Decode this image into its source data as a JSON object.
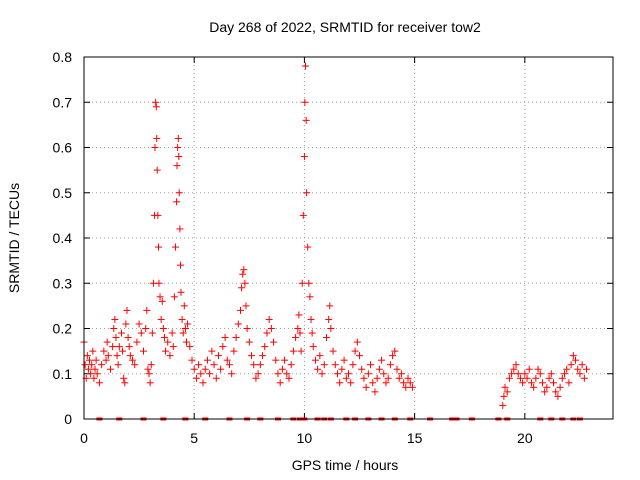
{
  "chart_data": {
    "type": "scatter",
    "title": "Day 268 of 2022, SRMTID for receiver tow2",
    "xlabel": "GPS time / hours",
    "ylabel": "SRMTID / TECUs",
    "xlim": [
      0,
      24
    ],
    "ylim": [
      0,
      0.8
    ],
    "x_ticks": [
      0,
      5,
      10,
      15,
      20
    ],
    "x_tick_labels": [
      "0",
      "5",
      "10",
      "15",
      "20"
    ],
    "y_ticks": [
      0,
      0.1,
      0.2,
      0.3,
      0.4,
      0.5,
      0.6,
      0.7,
      0.8
    ],
    "y_tick_labels": [
      "0",
      "0.1",
      "0.2",
      "0.3",
      "0.4",
      "0.5",
      "0.6",
      "0.7",
      "0.8"
    ],
    "grid": true,
    "marker": "+",
    "color": "#ff0000",
    "series": [
      {
        "name": "SRMTID",
        "points": [
          [
            0.0,
            0.17
          ],
          [
            0.05,
            0.12
          ],
          [
            0.1,
            0.09
          ],
          [
            0.15,
            0.14
          ],
          [
            0.2,
            0.11
          ],
          [
            0.25,
            0.13
          ],
          [
            0.3,
            0.1
          ],
          [
            0.35,
            0.12
          ],
          [
            0.4,
            0.15
          ],
          [
            0.45,
            0.09
          ],
          [
            0.5,
            0.11
          ],
          [
            0.55,
            0.13
          ],
          [
            0.6,
            0.1
          ],
          [
            0.7,
            0.08
          ],
          [
            0.8,
            0.12
          ],
          [
            0.9,
            0.15
          ],
          [
            1.0,
            0.13
          ],
          [
            1.05,
            0.17
          ],
          [
            1.1,
            0.14
          ],
          [
            1.2,
            0.11
          ],
          [
            1.3,
            0.16
          ],
          [
            1.35,
            0.2
          ],
          [
            1.4,
            0.22
          ],
          [
            1.45,
            0.18
          ],
          [
            1.5,
            0.14
          ],
          [
            1.55,
            0.12
          ],
          [
            1.6,
            0.16
          ],
          [
            1.7,
            0.19
          ],
          [
            1.75,
            0.15
          ],
          [
            1.8,
            0.09
          ],
          [
            1.85,
            0.08
          ],
          [
            1.9,
            0.21
          ],
          [
            1.95,
            0.24
          ],
          [
            2.0,
            0.18
          ],
          [
            2.05,
            0.16
          ],
          [
            2.1,
            0.14
          ],
          [
            2.2,
            0.13
          ],
          [
            2.3,
            0.12
          ],
          [
            2.4,
            0.17
          ],
          [
            2.5,
            0.21
          ],
          [
            2.6,
            0.19
          ],
          [
            2.7,
            0.15
          ],
          [
            2.8,
            0.2
          ],
          [
            2.85,
            0.24
          ],
          [
            2.9,
            0.11
          ],
          [
            2.95,
            0.1
          ],
          [
            3.0,
            0.08
          ],
          [
            3.05,
            0.12
          ],
          [
            3.1,
            0.19
          ],
          [
            3.15,
            0.3
          ],
          [
            3.2,
            0.45
          ],
          [
            3.22,
            0.6
          ],
          [
            3.25,
            0.7
          ],
          [
            3.28,
            0.69
          ],
          [
            3.3,
            0.62
          ],
          [
            3.32,
            0.55
          ],
          [
            3.35,
            0.45
          ],
          [
            3.38,
            0.38
          ],
          [
            3.4,
            0.3
          ],
          [
            3.45,
            0.27
          ],
          [
            3.5,
            0.22
          ],
          [
            3.55,
            0.26
          ],
          [
            3.6,
            0.2
          ],
          [
            3.65,
            0.18
          ],
          [
            3.7,
            0.15
          ],
          [
            3.8,
            0.17
          ],
          [
            3.9,
            0.14
          ],
          [
            4.0,
            0.19
          ],
          [
            4.05,
            0.16
          ],
          [
            4.1,
            0.27
          ],
          [
            4.15,
            0.38
          ],
          [
            4.2,
            0.48
          ],
          [
            4.22,
            0.56
          ],
          [
            4.25,
            0.6
          ],
          [
            4.28,
            0.62
          ],
          [
            4.3,
            0.58
          ],
          [
            4.32,
            0.5
          ],
          [
            4.35,
            0.42
          ],
          [
            4.38,
            0.34
          ],
          [
            4.4,
            0.28
          ],
          [
            4.45,
            0.22
          ],
          [
            4.5,
            0.19
          ],
          [
            4.55,
            0.25
          ],
          [
            4.6,
            0.2
          ],
          [
            4.65,
            0.17
          ],
          [
            4.7,
            0.21
          ],
          [
            4.8,
            0.16
          ],
          [
            4.9,
            0.13
          ],
          [
            5.0,
            0.11
          ],
          [
            5.1,
            0.09
          ],
          [
            5.2,
            0.12
          ],
          [
            5.3,
            0.1
          ],
          [
            5.4,
            0.08
          ],
          [
            5.5,
            0.11
          ],
          [
            5.6,
            0.13
          ],
          [
            5.7,
            0.1
          ],
          [
            5.8,
            0.15
          ],
          [
            5.9,
            0.12
          ],
          [
            6.0,
            0.09
          ],
          [
            6.1,
            0.14
          ],
          [
            6.2,
            0.11
          ],
          [
            6.3,
            0.16
          ],
          [
            6.4,
            0.18
          ],
          [
            6.5,
            0.13
          ],
          [
            6.6,
            0.12
          ],
          [
            6.7,
            0.1
          ],
          [
            6.8,
            0.15
          ],
          [
            6.9,
            0.18
          ],
          [
            7.0,
            0.21
          ],
          [
            7.1,
            0.24
          ],
          [
            7.15,
            0.29
          ],
          [
            7.2,
            0.32
          ],
          [
            7.25,
            0.33
          ],
          [
            7.3,
            0.3
          ],
          [
            7.35,
            0.25
          ],
          [
            7.4,
            0.2
          ],
          [
            7.5,
            0.17
          ],
          [
            7.6,
            0.14
          ],
          [
            7.7,
            0.12
          ],
          [
            7.8,
            0.09
          ],
          [
            7.9,
            0.1
          ],
          [
            8.0,
            0.12
          ],
          [
            8.1,
            0.14
          ],
          [
            8.2,
            0.16
          ],
          [
            8.3,
            0.19
          ],
          [
            8.4,
            0.22
          ],
          [
            8.5,
            0.2
          ],
          [
            8.6,
            0.17
          ],
          [
            8.7,
            0.13
          ],
          [
            8.8,
            0.1
          ],
          [
            8.9,
            0.08
          ],
          [
            9.0,
            0.11
          ],
          [
            9.1,
            0.13
          ],
          [
            9.2,
            0.1
          ],
          [
            9.3,
            0.09
          ],
          [
            9.4,
            0.12
          ],
          [
            9.5,
            0.15
          ],
          [
            9.6,
            0.18
          ],
          [
            9.7,
            0.2
          ],
          [
            9.75,
            0.23
          ],
          [
            9.8,
            0.19
          ],
          [
            9.85,
            0.15
          ],
          [
            9.9,
            0.3
          ],
          [
            9.95,
            0.45
          ],
          [
            10.0,
            0.58
          ],
          [
            10.02,
            0.7
          ],
          [
            10.05,
            0.78
          ],
          [
            10.08,
            0.66
          ],
          [
            10.1,
            0.5
          ],
          [
            10.15,
            0.38
          ],
          [
            10.2,
            0.3
          ],
          [
            10.25,
            0.27
          ],
          [
            10.3,
            0.22
          ],
          [
            10.35,
            0.19
          ],
          [
            10.4,
            0.16
          ],
          [
            10.5,
            0.13
          ],
          [
            10.6,
            0.11
          ],
          [
            10.7,
            0.14
          ],
          [
            10.8,
            0.1
          ],
          [
            10.9,
            0.12
          ],
          [
            11.0,
            0.18
          ],
          [
            11.1,
            0.22
          ],
          [
            11.15,
            0.25
          ],
          [
            11.2,
            0.2
          ],
          [
            11.3,
            0.15
          ],
          [
            11.4,
            0.12
          ],
          [
            11.5,
            0.1
          ],
          [
            11.6,
            0.08
          ],
          [
            11.7,
            0.11
          ],
          [
            11.8,
            0.13
          ],
          [
            11.9,
            0.09
          ],
          [
            12.0,
            0.1
          ],
          [
            12.1,
            0.08
          ],
          [
            12.2,
            0.12
          ],
          [
            12.3,
            0.15
          ],
          [
            12.4,
            0.17
          ],
          [
            12.5,
            0.14
          ],
          [
            12.6,
            0.11
          ],
          [
            12.7,
            0.09
          ],
          [
            12.8,
            0.07
          ],
          [
            12.9,
            0.1
          ],
          [
            13.0,
            0.12
          ],
          [
            13.1,
            0.08
          ],
          [
            13.2,
            0.06
          ],
          [
            13.3,
            0.09
          ],
          [
            13.4,
            0.11
          ],
          [
            13.5,
            0.13
          ],
          [
            13.6,
            0.1
          ],
          [
            13.7,
            0.08
          ],
          [
            13.8,
            0.09
          ],
          [
            13.9,
            0.12
          ],
          [
            14.0,
            0.14
          ],
          [
            14.1,
            0.15
          ],
          [
            14.2,
            0.11
          ],
          [
            14.3,
            0.09
          ],
          [
            14.4,
            0.1
          ],
          [
            14.5,
            0.08
          ],
          [
            14.6,
            0.07
          ],
          [
            14.7,
            0.09
          ],
          [
            14.8,
            0.08
          ],
          [
            14.9,
            0.07
          ],
          [
            19.0,
            0.03
          ],
          [
            19.05,
            0.05
          ],
          [
            19.1,
            0.07
          ],
          [
            19.2,
            0.06
          ],
          [
            19.3,
            0.09
          ],
          [
            19.4,
            0.1
          ],
          [
            19.5,
            0.11
          ],
          [
            19.6,
            0.12
          ],
          [
            19.7,
            0.1
          ],
          [
            19.8,
            0.09
          ],
          [
            19.9,
            0.08
          ],
          [
            20.0,
            0.1
          ],
          [
            20.1,
            0.09
          ],
          [
            20.2,
            0.11
          ],
          [
            20.3,
            0.08
          ],
          [
            20.4,
            0.07
          ],
          [
            20.5,
            0.09
          ],
          [
            20.6,
            0.11
          ],
          [
            20.7,
            0.1
          ],
          [
            20.8,
            0.08
          ],
          [
            20.9,
            0.06
          ],
          [
            21.0,
            0.07
          ],
          [
            21.1,
            0.09
          ],
          [
            21.2,
            0.1
          ],
          [
            21.3,
            0.08
          ],
          [
            21.4,
            0.06
          ],
          [
            21.5,
            0.05
          ],
          [
            21.6,
            0.07
          ],
          [
            21.7,
            0.09
          ],
          [
            21.8,
            0.1
          ],
          [
            21.9,
            0.11
          ],
          [
            22.0,
            0.08
          ],
          [
            22.1,
            0.12
          ],
          [
            22.2,
            0.14
          ],
          [
            22.3,
            0.13
          ],
          [
            22.4,
            0.11
          ],
          [
            22.5,
            0.1
          ],
          [
            22.6,
            0.12
          ],
          [
            22.7,
            0.09
          ],
          [
            22.8,
            0.11
          ]
        ]
      }
    ],
    "zero_markers_x": [
      0.7,
      1.6,
      2.7,
      3.6,
      4.6,
      5.5,
      6.6,
      7.4,
      8.0,
      8.8,
      9.5,
      9.8,
      10.0,
      10.6,
      10.9,
      11.2,
      11.9,
      12.3,
      12.9,
      13.5,
      14.1,
      14.8,
      15.7,
      16.7,
      16.9,
      17.6,
      18.8,
      19.2,
      20.7,
      21.2,
      21.7,
      22.2,
      22.5
    ]
  }
}
